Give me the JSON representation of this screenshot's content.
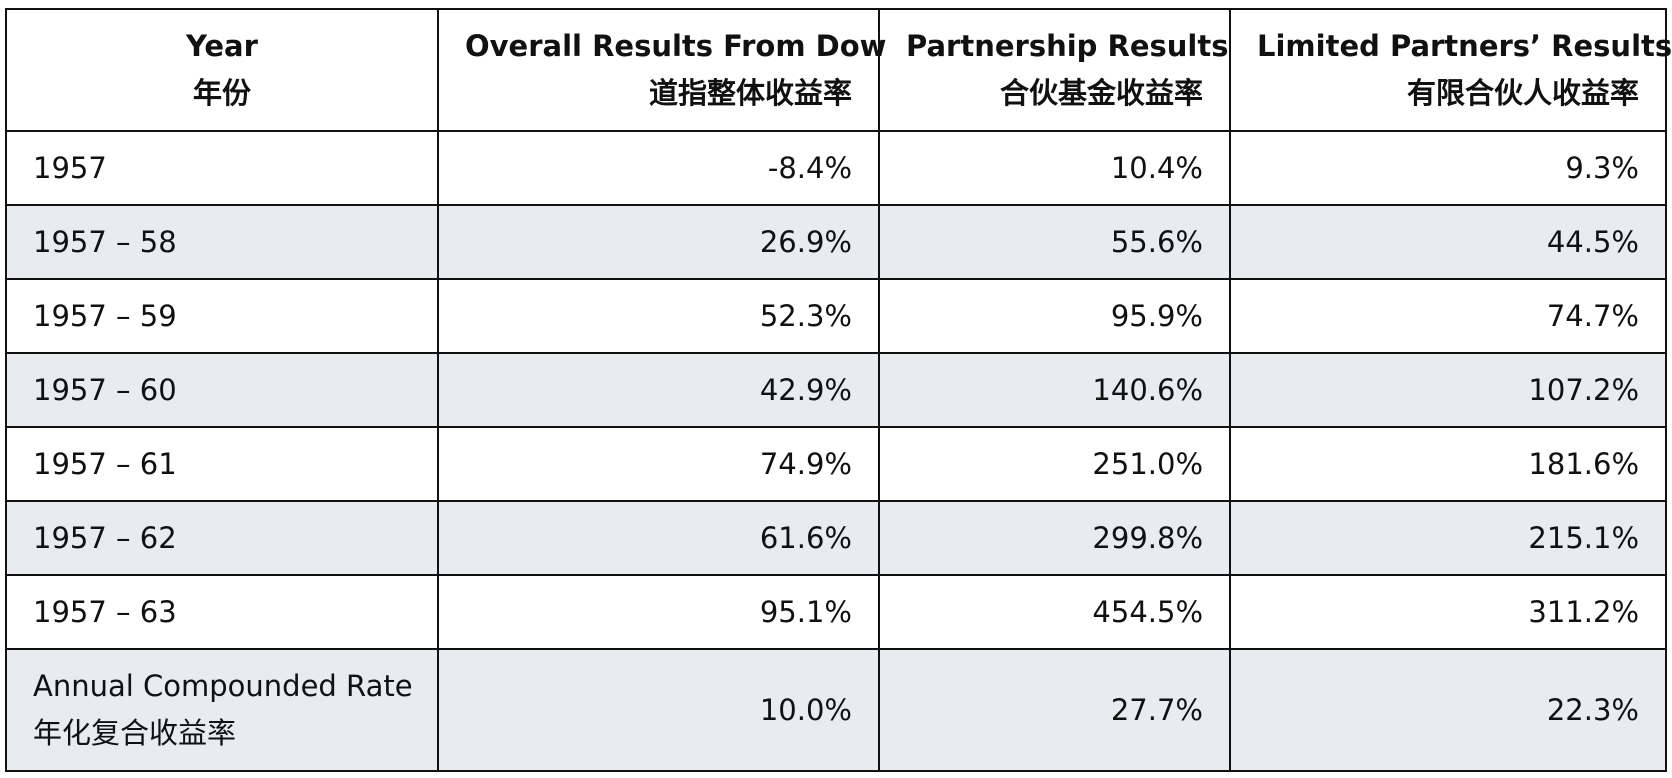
{
  "headers": [
    {
      "en": "Year",
      "zh": "年份"
    },
    {
      "en": "Overall Results From Dow",
      "zh": "道指整体收益率"
    },
    {
      "en": "Partnership Results",
      "zh": "合伙基金收益率"
    },
    {
      "en": "Limited Partners’ Results",
      "zh": "有限合伙人收益率"
    }
  ],
  "rows": [
    {
      "year": "1957",
      "dow": "-8.4%",
      "partnership": "10.4%",
      "limited": "9.3%"
    },
    {
      "year": "1957 – 58",
      "dow": "26.9%",
      "partnership": "55.6%",
      "limited": "44.5%"
    },
    {
      "year": "1957 – 59",
      "dow": "52.3%",
      "partnership": "95.9%",
      "limited": "74.7%"
    },
    {
      "year": "1957 – 60",
      "dow": "42.9%",
      "partnership": "140.6%",
      "limited": "107.2%"
    },
    {
      "year": "1957 – 61",
      "dow": "74.9%",
      "partnership": "251.0%",
      "limited": "181.6%"
    },
    {
      "year": "1957 – 62",
      "dow": "61.6%",
      "partnership": "299.8%",
      "limited": "215.1%"
    },
    {
      "year": "1957 – 63",
      "dow": "95.1%",
      "partnership": "454.5%",
      "limited": "311.2%"
    }
  ],
  "summary": {
    "label_en": "Annual Compounded Rate",
    "label_zh": "年化复合收益率",
    "dow": "10.0%",
    "partnership": "27.7%",
    "limited": "22.3%"
  },
  "colors": {
    "alt_row_background": "#e8ebef",
    "border": "#111111"
  }
}
